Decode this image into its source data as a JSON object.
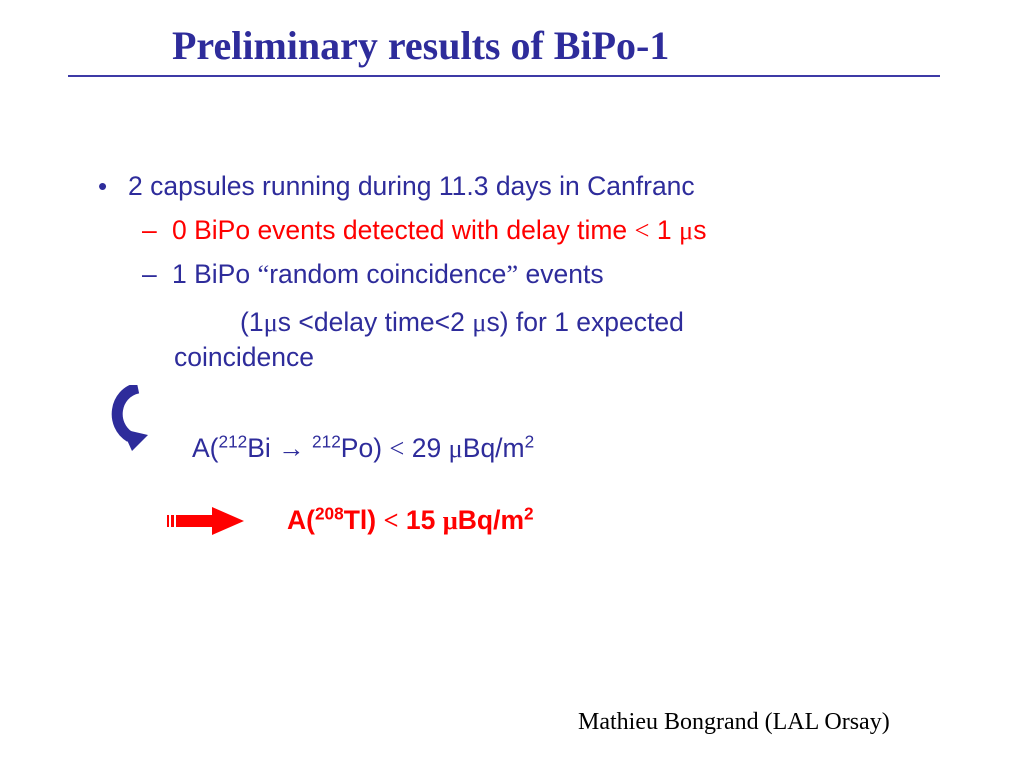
{
  "slide": {
    "title": "Preliminary results of BiPo-1",
    "bullet_symbol": "•",
    "bullet_main": "2 capsules running during 11.3 days in Canfranc",
    "sub1": {
      "dash": "–",
      "text": "0 BiPo events detected with delay time ",
      "lt": "<",
      "value": " 1 ",
      "mu": "μ",
      "unit": "s"
    },
    "sub2": {
      "dash": "–",
      "prefix": "1 BiPo ",
      "open_quote": "“",
      "quoted": "random coincidence",
      "close_quote": "”",
      "suffix": " events"
    },
    "sub2_cont": {
      "part1": "(1",
      "mu1": "μ",
      "part2": "s <delay time<2 ",
      "mu2": "μ",
      "part3": "s) for 1 expected"
    },
    "sub2_cont2": "coincidence",
    "formula": {
      "prefix": "A(",
      "mass1": "212",
      "element1": "Bi ",
      "arrow": "→",
      "space": " ",
      "mass2": "212",
      "element2": "Po) ",
      "lt": "<",
      "value": " 29 ",
      "mu": "μ",
      "unit": "Bq/m",
      "exp": "2"
    },
    "result": {
      "prefix": "A(",
      "mass": "208",
      "element": "Tl) ",
      "lt": "<",
      "value": " 15 ",
      "mu": "μ",
      "unit": "Bq/m",
      "exp": "2"
    },
    "footer": "Mathieu Bongrand (LAL Orsay)",
    "icons": {
      "curved_arrow": "curved-arrow-icon",
      "result_arrow": "striped-right-arrow-icon"
    },
    "colors": {
      "text_blue": "#2e2c9b",
      "highlight_red": "#ff0000",
      "arrow_blue": "#2e2c9b"
    }
  }
}
